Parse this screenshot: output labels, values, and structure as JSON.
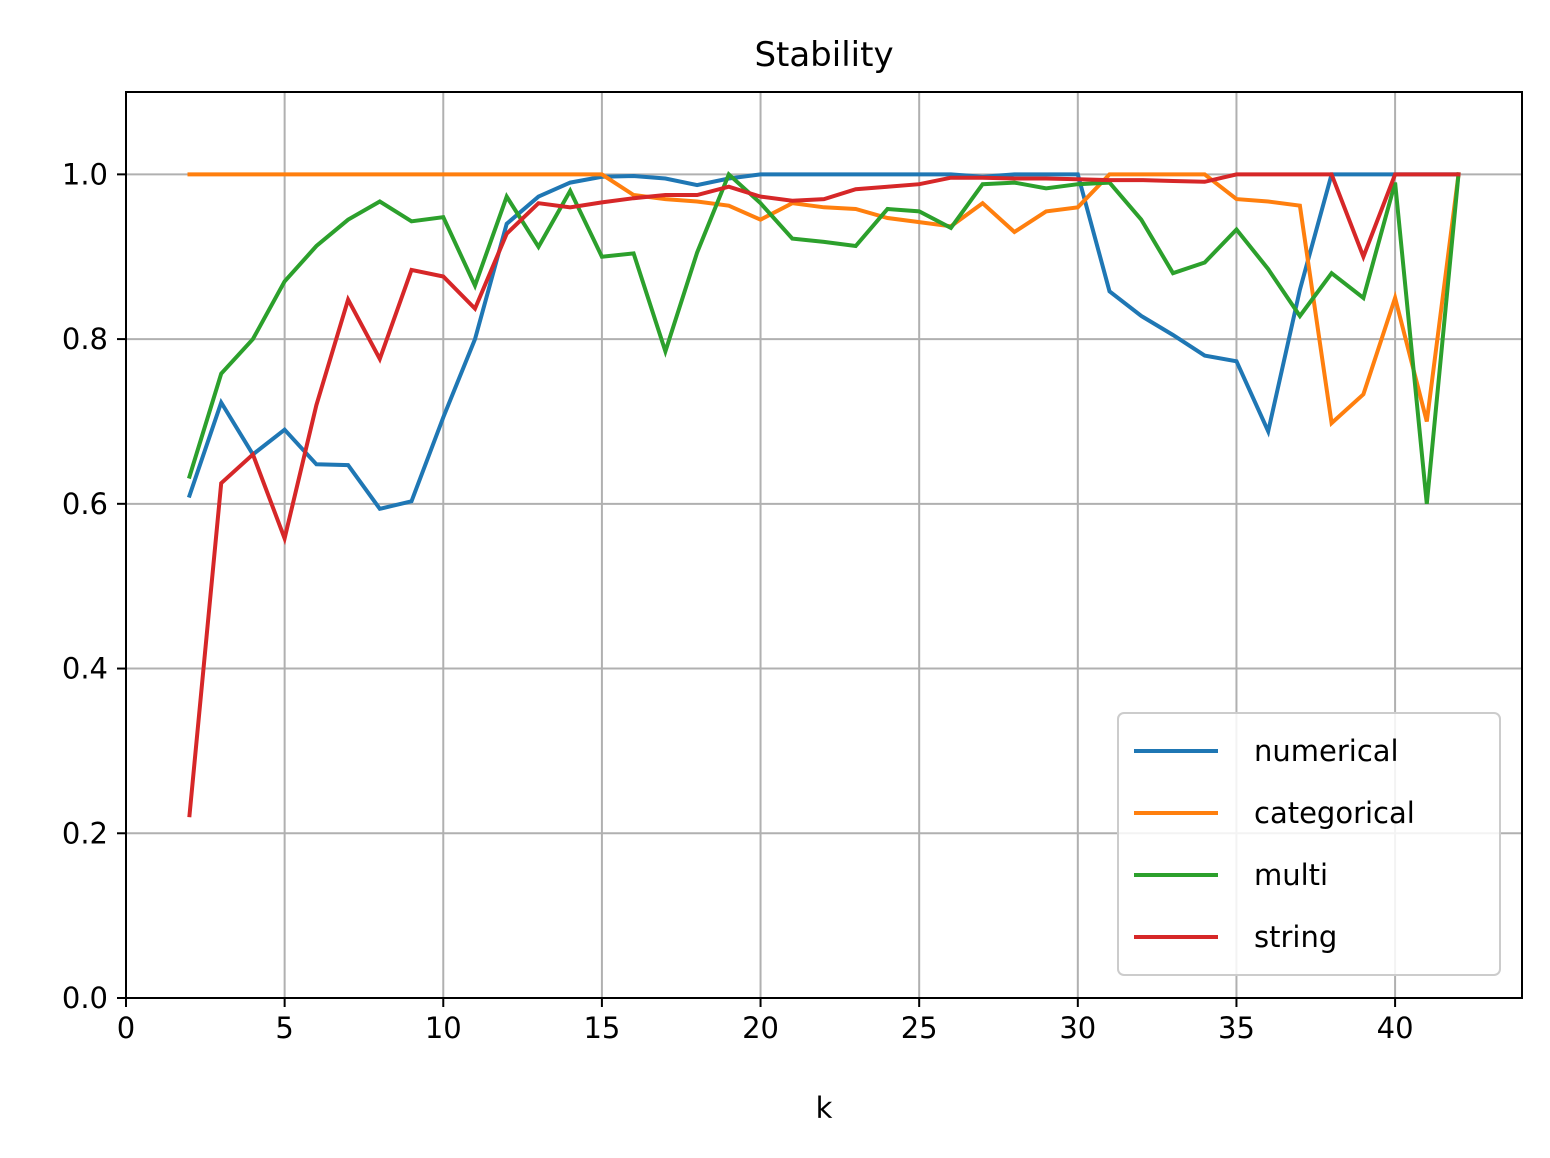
{
  "chart_data": {
    "type": "line",
    "title": "Stability",
    "xlabel": "k",
    "ylabel": "",
    "xlim": [
      0,
      44
    ],
    "ylim": [
      0,
      1.1
    ],
    "xticks": [
      "0",
      "5",
      "10",
      "15",
      "20",
      "25",
      "30",
      "35",
      "40"
    ],
    "yticks": [
      "0.0",
      "0.2",
      "0.4",
      "0.6",
      "0.8",
      "1.0"
    ],
    "grid": true,
    "legend_position": "lower-right",
    "x": [
      2,
      3,
      4,
      5,
      6,
      7,
      8,
      9,
      10,
      11,
      12,
      13,
      14,
      15,
      16,
      17,
      18,
      19,
      20,
      21,
      22,
      23,
      24,
      25,
      26,
      27,
      28,
      29,
      30,
      31,
      32,
      33,
      34,
      35,
      36,
      37,
      38,
      39,
      40,
      41,
      42
    ],
    "series": [
      {
        "name": "numerical",
        "color": "#1f77b4",
        "values": [
          0.61,
          0.723,
          0.66,
          0.69,
          0.648,
          0.647,
          0.594,
          0.603,
          0.705,
          0.8,
          0.94,
          0.973,
          0.99,
          0.997,
          0.998,
          0.995,
          0.987,
          0.995,
          1.0,
          1.0,
          1.0,
          1.0,
          1.0,
          1.0,
          1.0,
          0.997,
          1.0,
          1.0,
          1.0,
          0.858,
          0.828,
          0.805,
          0.78,
          0.773,
          0.688,
          0.86,
          1.0,
          1.0,
          1.0,
          1.0,
          1.0
        ]
      },
      {
        "name": "categorical",
        "color": "#ff7f0e",
        "values": [
          1.0,
          1.0,
          1.0,
          1.0,
          1.0,
          1.0,
          1.0,
          1.0,
          1.0,
          1.0,
          1.0,
          1.0,
          1.0,
          1.0,
          0.975,
          0.97,
          0.967,
          0.962,
          0.945,
          0.965,
          0.96,
          0.958,
          0.947,
          0.942,
          0.937,
          0.965,
          0.93,
          0.955,
          0.96,
          1.0,
          1.0,
          1.0,
          1.0,
          0.97,
          0.967,
          0.962,
          0.698,
          0.733,
          0.85,
          0.7,
          1.0
        ]
      },
      {
        "name": "multi",
        "color": "#2ca02c",
        "values": [
          0.633,
          0.758,
          0.8,
          0.87,
          0.913,
          0.945,
          0.967,
          0.943,
          0.948,
          0.865,
          0.973,
          0.912,
          0.98,
          0.9,
          0.904,
          0.785,
          0.905,
          1.0,
          0.965,
          0.922,
          0.918,
          0.913,
          0.958,
          0.955,
          0.935,
          0.988,
          0.99,
          0.983,
          0.988,
          0.99,
          0.945,
          0.88,
          0.893,
          0.933,
          0.885,
          0.828,
          0.88,
          0.85,
          0.99,
          0.6,
          1.0
        ]
      },
      {
        "name": "string",
        "color": "#d62728",
        "values": [
          0.222,
          0.625,
          0.66,
          0.558,
          0.72,
          0.848,
          0.776,
          0.884,
          0.876,
          0.837,
          0.928,
          0.965,
          0.96,
          0.966,
          0.971,
          0.975,
          0.975,
          0.985,
          0.973,
          0.968,
          0.97,
          0.982,
          0.985,
          0.988,
          0.996,
          0.996,
          0.995,
          0.995,
          0.994,
          0.993,
          0.993,
          0.992,
          0.991,
          1.0,
          1.0,
          1.0,
          1.0,
          0.9,
          1.0,
          1.0,
          1.0
        ]
      }
    ]
  }
}
